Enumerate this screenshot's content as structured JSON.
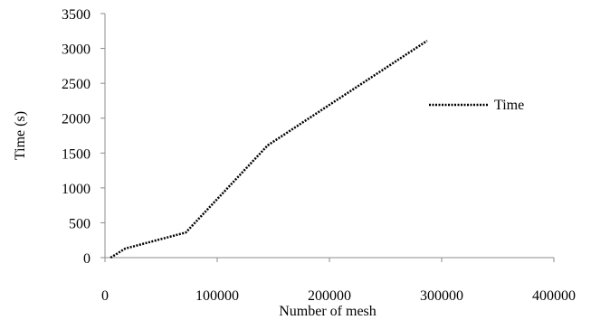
{
  "chart_data": {
    "type": "line",
    "title": "",
    "xlabel": "Number of mesh",
    "ylabel": "Time (s)",
    "xlim": [
      0,
      400000
    ],
    "ylim": [
      0,
      3500
    ],
    "x_ticks": [
      0,
      100000,
      200000,
      300000,
      400000
    ],
    "y_ticks": [
      0,
      500,
      1000,
      1500,
      2000,
      2500,
      3000,
      3500
    ],
    "x_tick_labels": [
      "0",
      "100000",
      "200000",
      "300000",
      "400000"
    ],
    "y_tick_labels": [
      "0",
      "500",
      "1000",
      "1500",
      "2000",
      "2500",
      "3000",
      "3500"
    ],
    "grid": false,
    "legend_position": "right",
    "series": [
      {
        "name": "Time",
        "style": "dotted",
        "color": "#000000",
        "x": [
          5000,
          18000,
          72000,
          145000,
          287000
        ],
        "y": [
          0,
          130,
          360,
          1610,
          3110
        ]
      }
    ]
  }
}
